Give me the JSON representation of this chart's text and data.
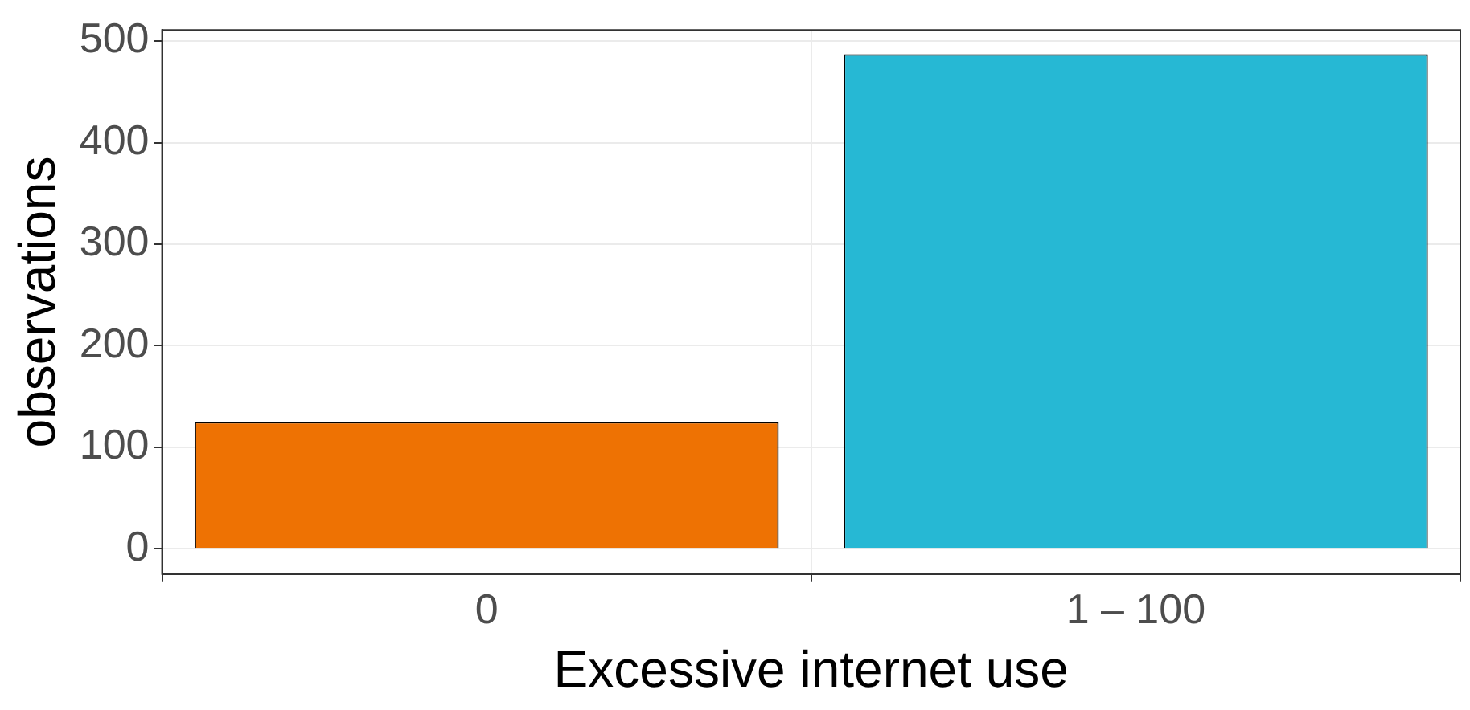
{
  "chart_data": {
    "type": "bar",
    "xlabel": "Excessive internet use",
    "ylabel": "observations",
    "categories": [
      "0",
      "1 – 100"
    ],
    "values": [
      125,
      487
    ],
    "colors": [
      "#ee7203",
      "#26b8d4"
    ],
    "ylim": [
      -25,
      511
    ],
    "yticks": [
      0,
      100,
      200,
      300,
      400,
      500
    ],
    "grid": true,
    "legend": false
  }
}
